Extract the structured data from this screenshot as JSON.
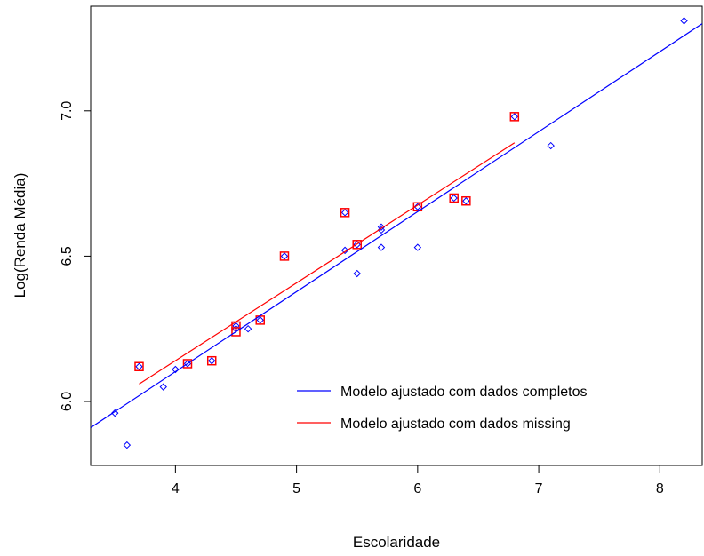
{
  "chart_data": {
    "type": "scatter",
    "title": "",
    "xlabel": "Escolaridade",
    "ylabel": "Log(Renda Média)",
    "xlim": [
      3.3,
      8.35
    ],
    "ylim": [
      5.78,
      7.36
    ],
    "xticks": [
      "4",
      "5",
      "6",
      "7",
      "8"
    ],
    "yticks": [
      "6.0",
      "6.5",
      "7.0"
    ],
    "grid": false,
    "legend": "bottom-right",
    "series": [
      {
        "kind": "points",
        "marker": "diamond",
        "color": "#0000ff",
        "x": [
          3.5,
          3.6,
          3.7,
          3.9,
          4.0,
          4.1,
          4.3,
          4.5,
          4.5,
          4.6,
          4.7,
          4.9,
          5.4,
          5.4,
          5.5,
          5.5,
          5.7,
          5.7,
          5.7,
          6.0,
          6.0,
          6.3,
          6.4,
          6.8,
          7.1,
          8.2
        ],
        "y": [
          5.96,
          5.85,
          6.12,
          6.05,
          6.11,
          6.13,
          6.14,
          6.25,
          6.26,
          6.25,
          6.28,
          6.5,
          6.52,
          6.65,
          6.44,
          6.54,
          6.53,
          6.59,
          6.6,
          6.53,
          6.67,
          6.7,
          6.69,
          6.98,
          6.88,
          7.31
        ]
      },
      {
        "kind": "points",
        "marker": "square",
        "color": "#ff0000",
        "x": [
          3.7,
          4.1,
          4.3,
          4.5,
          4.5,
          4.7,
          4.9,
          5.4,
          5.5,
          6.0,
          6.3,
          6.4,
          6.8
        ],
        "y": [
          6.12,
          6.13,
          6.14,
          6.24,
          6.26,
          6.28,
          6.5,
          6.65,
          6.54,
          6.67,
          6.7,
          6.69,
          6.98
        ]
      },
      {
        "kind": "line",
        "name": "Modelo ajustado com dados completos",
        "color": "#0000ff",
        "x": [
          3.3,
          8.35
        ],
        "y": [
          5.91,
          7.3
        ]
      },
      {
        "kind": "line",
        "name": "Modelo ajustado com dados missing",
        "color": "#ff0000",
        "x": [
          3.7,
          6.8
        ],
        "y": [
          6.06,
          6.89
        ]
      }
    ]
  }
}
